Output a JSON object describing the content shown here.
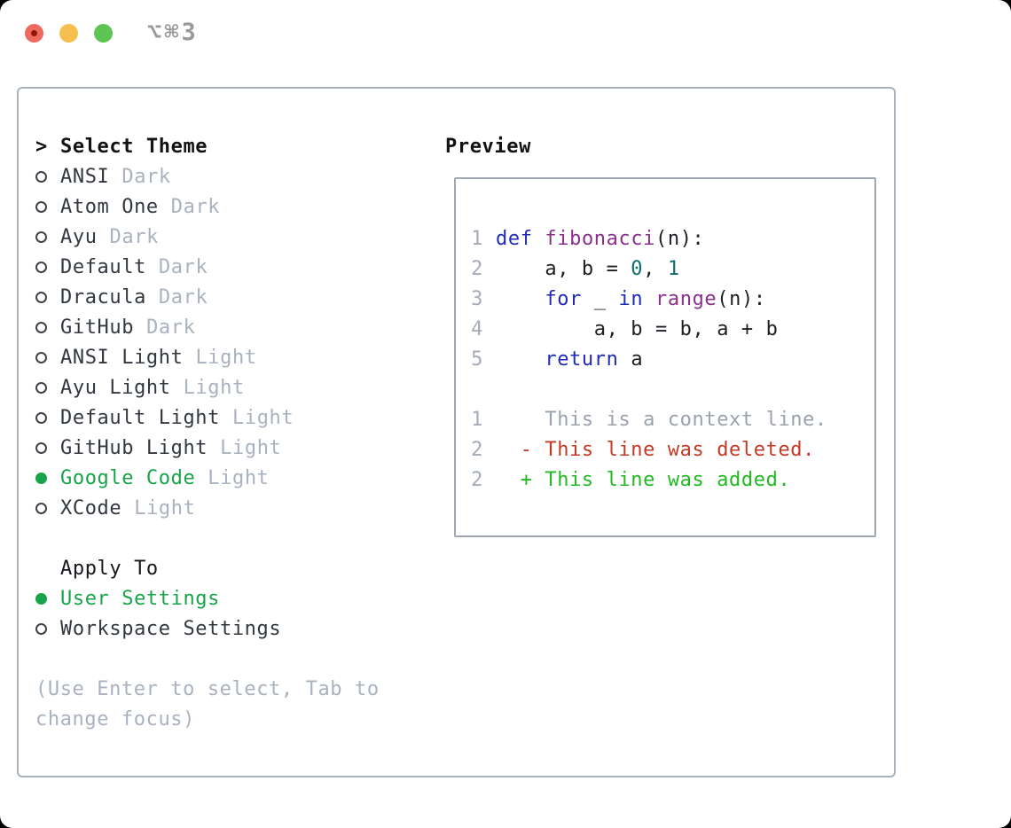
{
  "window": {
    "title": "⌥⌘3"
  },
  "colors": {
    "accent_green": "#17a349",
    "keyword_blue": "#1f2bb8",
    "function_purple": "#8b2f8b",
    "literal_teal": "#0e6d6d",
    "diff_red": "#c23a24",
    "diff_green": "#21ba21",
    "muted_gray": "#a9b2bf",
    "traffic_close": "#ee6a5e",
    "traffic_minimize": "#f5bf4f",
    "traffic_zoom": "#5ec454"
  },
  "theme_list": {
    "header_prefix": ">",
    "header": "Select Theme",
    "items": [
      {
        "name": "ANSI",
        "variant": "Dark",
        "selected": false
      },
      {
        "name": "Atom One",
        "variant": "Dark",
        "selected": false
      },
      {
        "name": "Ayu",
        "variant": "Dark",
        "selected": false
      },
      {
        "name": "Default",
        "variant": "Dark",
        "selected": false
      },
      {
        "name": "Dracula",
        "variant": "Dark",
        "selected": false
      },
      {
        "name": "GitHub",
        "variant": "Dark",
        "selected": false
      },
      {
        "name": "ANSI Light",
        "variant": "Light",
        "selected": false
      },
      {
        "name": "Ayu Light",
        "variant": "Light",
        "selected": false
      },
      {
        "name": "Default Light",
        "variant": "Light",
        "selected": false
      },
      {
        "name": "GitHub Light",
        "variant": "Light",
        "selected": false
      },
      {
        "name": "Google Code",
        "variant": "Light",
        "selected": true
      },
      {
        "name": "XCode",
        "variant": "Light",
        "selected": false
      }
    ]
  },
  "apply_to": {
    "header": "Apply To",
    "options": [
      {
        "label": "User Settings",
        "selected": true
      },
      {
        "label": "Workspace Settings",
        "selected": false
      }
    ]
  },
  "hint": {
    "line1": "(Use Enter to select, Tab to",
    "line2": "change focus)"
  },
  "preview": {
    "header": "Preview",
    "code_lines": [
      {
        "num": "1",
        "segs": [
          {
            "type": "keyword",
            "text": "def"
          },
          {
            "type": "plain",
            "text": " "
          },
          {
            "type": "function",
            "text": "fibonacci"
          },
          {
            "type": "plain",
            "text": "(n):"
          }
        ]
      },
      {
        "num": "2",
        "segs": [
          {
            "type": "plain",
            "text": "    a, b = "
          },
          {
            "type": "literal",
            "text": "0"
          },
          {
            "type": "plain",
            "text": ", "
          },
          {
            "type": "literal",
            "text": "1"
          }
        ]
      },
      {
        "num": "3",
        "segs": [
          {
            "type": "plain",
            "text": "    "
          },
          {
            "type": "keyword",
            "text": "for"
          },
          {
            "type": "plain",
            "text": " _ "
          },
          {
            "type": "keyword",
            "text": "in"
          },
          {
            "type": "plain",
            "text": " "
          },
          {
            "type": "function",
            "text": "range"
          },
          {
            "type": "plain",
            "text": "(n):"
          }
        ]
      },
      {
        "num": "4",
        "segs": [
          {
            "type": "plain",
            "text": "        a, b = b, a + b"
          }
        ]
      },
      {
        "num": "5",
        "segs": [
          {
            "type": "plain",
            "text": "    "
          },
          {
            "type": "keyword",
            "text": "return"
          },
          {
            "type": "plain",
            "text": " a"
          }
        ]
      }
    ],
    "diff_lines": [
      {
        "num": "1",
        "type": "context",
        "text": "    This is a context line."
      },
      {
        "num": "2",
        "type": "deleted",
        "text": "  - This line was deleted."
      },
      {
        "num": "2",
        "type": "added",
        "text": "  + This line was added."
      }
    ]
  }
}
